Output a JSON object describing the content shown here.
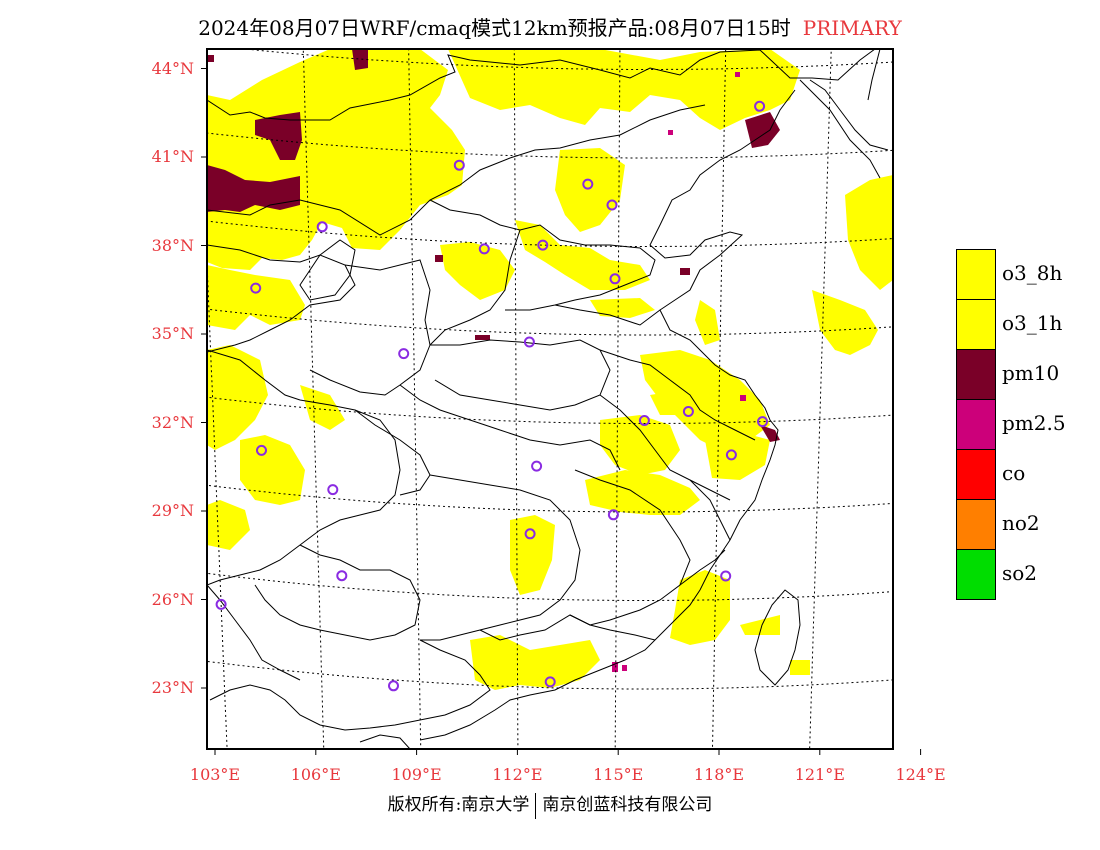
{
  "title": {
    "main": "2024年08月07日WRF/cmaq模式12km预报产品:08月07日15时",
    "tag": "PRIMARY"
  },
  "map": {
    "lon_range": [
      103,
      124
    ],
    "lat_range": [
      21,
      44.5
    ],
    "lat_labels": [
      "44°N",
      "41°N",
      "38°N",
      "35°N",
      "32°N",
      "29°N",
      "26°N",
      "23°N"
    ],
    "lat_values": [
      44,
      41,
      38,
      35,
      32,
      29,
      26,
      23
    ],
    "lon_labels": [
      "103°E",
      "106°E",
      "109°E",
      "112°E",
      "115°E",
      "118°E",
      "121°E",
      "124°E"
    ],
    "lon_values": [
      103,
      106,
      109,
      112,
      115,
      118,
      121,
      124
    ],
    "station_color": "#8a2be2",
    "stations": [
      [
        119.0,
        42.7
      ],
      [
        110.4,
        40.6
      ],
      [
        114.1,
        40.1
      ],
      [
        114.8,
        39.4
      ],
      [
        106.4,
        38.2
      ],
      [
        111.1,
        37.8
      ],
      [
        112.8,
        38.0
      ],
      [
        114.9,
        36.9
      ],
      [
        104.4,
        35.9
      ],
      [
        112.4,
        34.7
      ],
      [
        108.7,
        34.1
      ],
      [
        117.1,
        32.4
      ],
      [
        115.8,
        32.1
      ],
      [
        119.3,
        32.0
      ],
      [
        104.4,
        30.4
      ],
      [
        112.6,
        30.5
      ],
      [
        118.4,
        30.9
      ],
      [
        106.5,
        29.3
      ],
      [
        114.9,
        28.9
      ],
      [
        112.4,
        28.2
      ],
      [
        118.3,
        26.8
      ],
      [
        106.7,
        26.4
      ],
      [
        103.0,
        25.0
      ],
      [
        108.2,
        22.8
      ],
      [
        113.0,
        23.2
      ]
    ],
    "colors": {
      "o3": "#ffff00",
      "pm10": "#7a0028",
      "pm25": "#cc007a",
      "border": "#000000",
      "grid": "#000000"
    }
  },
  "legend": [
    {
      "label": "o3_8h",
      "color": "#ffff00"
    },
    {
      "label": "o3_1h",
      "color": "#ffff00"
    },
    {
      "label": "pm10",
      "color": "#7a0028"
    },
    {
      "label": "pm2.5",
      "color": "#cc007a"
    },
    {
      "label": "co",
      "color": "#ff0000"
    },
    {
      "label": "no2",
      "color": "#ff7f00"
    },
    {
      "label": "so2",
      "color": "#00dd00"
    }
  ],
  "copyright": {
    "left": "版权所有:南京大学",
    "right": "南京创蓝科技有限公司"
  }
}
